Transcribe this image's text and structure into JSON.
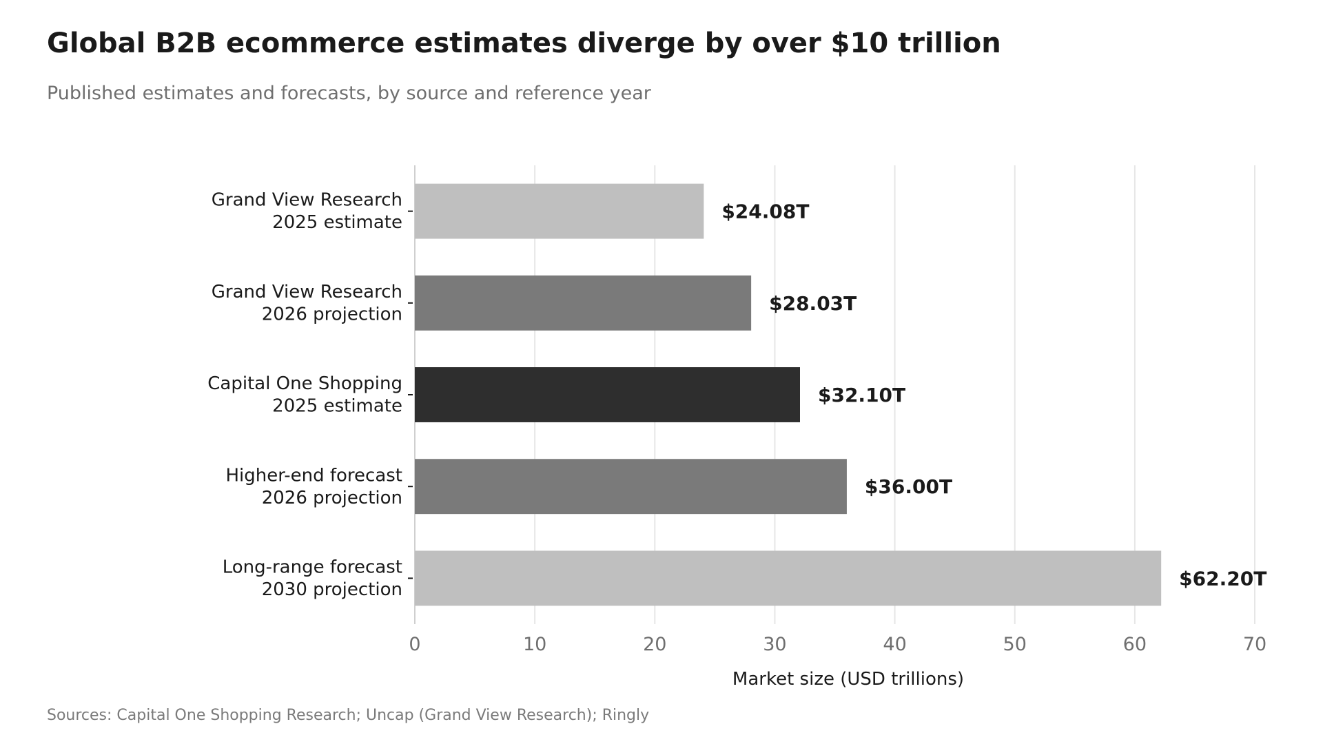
{
  "chart_data": {
    "type": "bar",
    "orientation": "horizontal",
    "title": "Global B2B ecommerce estimates diverge by over $10 trillion",
    "subtitle": "Published estimates and forecasts, by source and reference year",
    "source": "Sources: Capital One Shopping Research; Uncap (Grand View Research); Ringly",
    "xlabel": "Market size (USD trillions)",
    "ylabel": "",
    "xlim": [
      0,
      70
    ],
    "xticks": [
      0,
      10,
      20,
      30,
      40,
      50,
      60,
      70
    ],
    "xtick_labels": [
      "0",
      "10",
      "20",
      "30",
      "40",
      "50",
      "60",
      "70"
    ],
    "grid": "vertical",
    "legend": "none",
    "categories": [
      [
        "Grand View Research",
        "2025 estimate"
      ],
      [
        "Grand View Research",
        "2026 projection"
      ],
      [
        "Capital One Shopping",
        "2025 estimate"
      ],
      [
        "Higher-end forecast",
        "2026 projection"
      ],
      [
        "Long-range forecast",
        "2030 projection"
      ]
    ],
    "values": [
      24.08,
      28.03,
      32.1,
      36.0,
      62.2
    ],
    "value_labels": [
      "$24.08T",
      "$28.03T",
      "$32.10T",
      "$36.00T",
      "$62.20T"
    ],
    "bar_colors": [
      "#bfbfbf",
      "#7a7a7a",
      "#2e2e2e",
      "#7a7a7a",
      "#bfbfbf"
    ]
  }
}
